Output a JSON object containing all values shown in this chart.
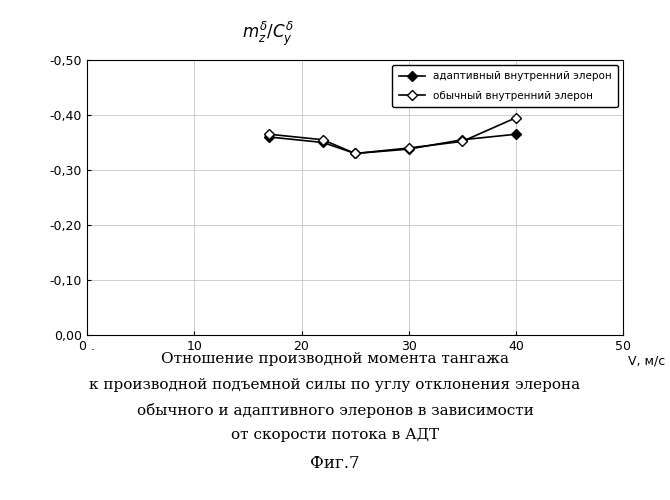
{
  "adaptive_x": [
    17,
    22,
    25,
    30,
    35,
    40
  ],
  "adaptive_y": [
    -0.36,
    -0.35,
    -0.33,
    -0.338,
    -0.355,
    -0.365
  ],
  "ordinary_x": [
    17,
    22,
    25,
    30,
    35,
    40
  ],
  "ordinary_y": [
    -0.365,
    -0.355,
    -0.33,
    -0.34,
    -0.352,
    -0.395
  ],
  "adaptive_label": "адаптивный внутренний элерон",
  "ordinary_label": "обычный внутренний элерон",
  "ylabel_text": "mₓᵞ/Cᵧᵞ",
  "xlabel": "V, м/с",
  "xlim": [
    0,
    50
  ],
  "ylim": [
    -0.5,
    0.0
  ],
  "yticks": [
    -0.5,
    -0.4,
    -0.3,
    -0.2,
    -0.1,
    0.0
  ],
  "ytick_labels": [
    "-0,50",
    "-0,40",
    "-0,30",
    "-0,20",
    "-0,10",
    "0,00"
  ],
  "xticks": [
    0,
    10,
    20,
    30,
    40,
    50
  ],
  "xtick_labels": [
    "0 .",
    "10",
    "20",
    "30",
    "40",
    "50"
  ],
  "caption_line1": "Отношение производной момента тангажа",
  "caption_line2": "к производной подъемной силы по углу отклонения элерона",
  "caption_line3": "обычного и адаптивного элеронов в зависимости",
  "caption_line4": "от скорости потока в АДТ",
  "fig_label": "Фиг.7",
  "bg_color": "#ffffff",
  "grid_color": "#bbbbbb",
  "line_color": "#000000"
}
